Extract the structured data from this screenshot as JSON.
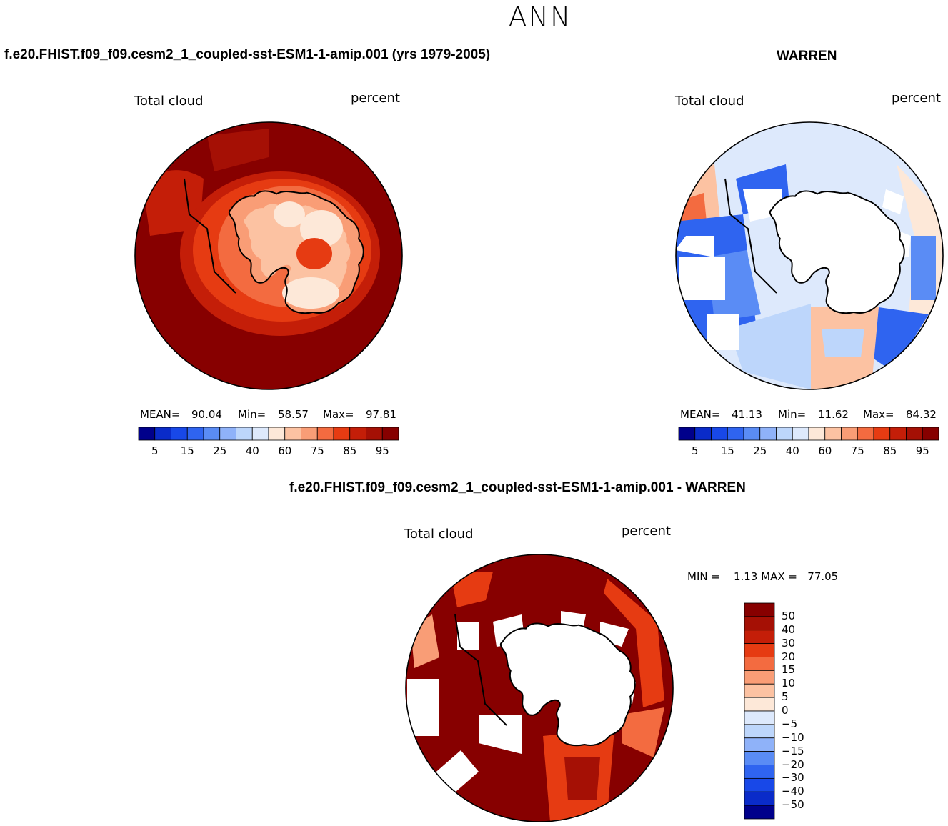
{
  "title": "ANN",
  "panels": [
    {
      "case_title": "f.e20.FHIST.f09_f09.cesm2_1_coupled-sst-ESM1-1-amip.001 (yrs 1979-2005)",
      "left_label": "Total cloud",
      "right_label": "percent",
      "mean_label": "MEAN=",
      "mean_value": "90.04",
      "min_label": "Min=",
      "min_value": "58.57",
      "max_label": "Max=",
      "max_value": "97.81"
    },
    {
      "case_title": "WARREN",
      "left_label": "Total cloud",
      "right_label": "percent",
      "mean_label": "MEAN=",
      "mean_value": "41.13",
      "min_label": "Min=",
      "min_value": "11.62",
      "max_label": "Max=",
      "max_value": "84.32"
    },
    {
      "case_title": "f.e20.FHIST.f09_f09.cesm2_1_coupled-sst-ESM1-1-amip.001 - WARREN",
      "left_label": "Total cloud",
      "right_label": "percent",
      "minmax_text": "MIN =    1.13 MAX =   77.05"
    }
  ],
  "colors": {
    "main_scale": [
      "#00008b",
      "#0a2bc9",
      "#1848e8",
      "#2f64f0",
      "#5a8cf5",
      "#8fb2f9",
      "#bdd6fb",
      "#dde9fc",
      "#fde8d8",
      "#fcc2a2",
      "#f99d76",
      "#f36b40",
      "#e63b12",
      "#c41e08",
      "#a51005",
      "#870000"
    ],
    "land": "#ffffff",
    "coast": "#000000"
  },
  "main_ticks": [
    "5",
    "15",
    "25",
    "40",
    "60",
    "75",
    "85",
    "95"
  ],
  "diff_ticks": [
    "50",
    "40",
    "30",
    "20",
    "15",
    "10",
    "5",
    "0",
    "−5",
    "−10",
    "−15",
    "−20",
    "−30",
    "−40",
    "−50"
  ],
  "chart_data": [
    {
      "type": "heatmap",
      "title": "f.e20.FHIST.f09_f09.cesm2_1_coupled-sst-ESM1-1-amip.001 (yrs 1979-2005)",
      "variable": "Total cloud",
      "units": "percent",
      "projection": "south polar stereographic",
      "mean": 90.04,
      "min": 58.57,
      "max": 97.81,
      "levels": [
        5,
        10,
        15,
        20,
        25,
        30,
        40,
        50,
        60,
        70,
        75,
        80,
        85,
        90,
        95
      ]
    },
    {
      "type": "heatmap",
      "title": "WARREN",
      "variable": "Total cloud",
      "units": "percent",
      "projection": "south polar stereographic",
      "mean": 41.13,
      "min": 11.62,
      "max": 84.32,
      "levels": [
        5,
        10,
        15,
        20,
        25,
        30,
        40,
        50,
        60,
        70,
        75,
        80,
        85,
        90,
        95
      ]
    },
    {
      "type": "heatmap",
      "title": "f.e20.FHIST.f09_f09.cesm2_1_coupled-sst-ESM1-1-amip.001 - WARREN",
      "variable": "Total cloud",
      "units": "percent",
      "projection": "south polar stereographic",
      "min": 1.13,
      "max": 77.05,
      "levels": [
        -50,
        -40,
        -30,
        -20,
        -15,
        -10,
        -5,
        0,
        5,
        10,
        15,
        20,
        30,
        40,
        50
      ]
    }
  ]
}
